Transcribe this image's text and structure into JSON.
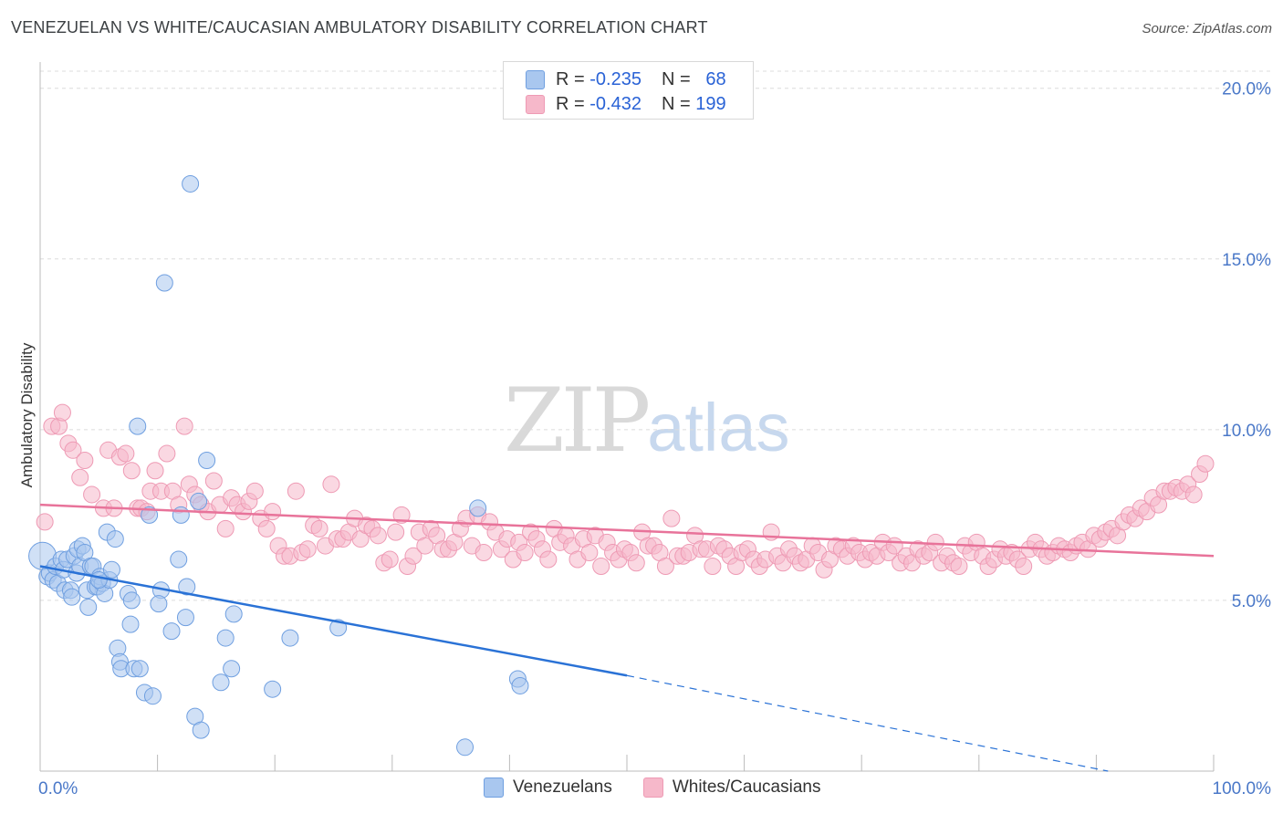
{
  "header": {
    "title": "VENEZUELAN VS WHITE/CAUCASIAN AMBULATORY DISABILITY CORRELATION CHART",
    "source": "Source: ZipAtlas.com"
  },
  "watermark": {
    "zip": "ZIP",
    "atlas": "atlas"
  },
  "legend": {
    "rows": [
      {
        "r_label": "R =",
        "r_value": "-0.235",
        "n_label": "N =",
        "n_value": "68",
        "color": "#a9c7ef"
      },
      {
        "r_label": "R =",
        "r_value": "-0.432",
        "n_label": "N =",
        "n_value": "199",
        "color": "#f6b8ca"
      }
    ]
  },
  "bottom_legend": [
    {
      "label": "Venezuelans",
      "color": "#a9c7ef"
    },
    {
      "label": "Whites/Caucasians",
      "color": "#f6b8ca"
    }
  ],
  "chart_data": {
    "type": "scatter",
    "title": "VENEZUELAN VS WHITE/CAUCASIAN AMBULATORY DISABILITY CORRELATION CHART",
    "xlabel": "",
    "ylabel": "Ambulatory Disability",
    "xlim": [
      0,
      100
    ],
    "ylim": [
      0,
      20.5
    ],
    "x_tick_labels": [
      "0.0%",
      "100.0%"
    ],
    "y_ticks": [
      5,
      10,
      15,
      20
    ],
    "y_tick_labels": [
      "5.0%",
      "10.0%",
      "15.0%",
      "20.0%"
    ],
    "grid": true,
    "legend_position": "top-center",
    "series": [
      {
        "name": "Venezuelans",
        "color": "#6f9fe0",
        "fill": "#a9c7ef",
        "trend": {
          "x0": 0,
          "y0": 6.0,
          "x1": 50,
          "y1": 2.8,
          "dashed_to_x": 91,
          "dashed_to_y": 0.0
        },
        "points": [
          [
            0.2,
            6.3
          ],
          [
            0.6,
            5.7
          ],
          [
            0.8,
            5.8
          ],
          [
            1.1,
            5.6
          ],
          [
            1.5,
            5.5
          ],
          [
            1.3,
            6.0
          ],
          [
            1.8,
            6.2
          ],
          [
            2.0,
            5.9
          ],
          [
            2.3,
            6.2
          ],
          [
            2.1,
            5.3
          ],
          [
            2.6,
            5.3
          ],
          [
            2.7,
            5.1
          ],
          [
            2.9,
            6.3
          ],
          [
            3.1,
            5.8
          ],
          [
            3.2,
            6.5
          ],
          [
            3.4,
            6.0
          ],
          [
            3.6,
            6.6
          ],
          [
            3.8,
            6.4
          ],
          [
            4.0,
            5.3
          ],
          [
            4.1,
            4.8
          ],
          [
            4.3,
            6.0
          ],
          [
            4.5,
            6.0
          ],
          [
            4.7,
            5.4
          ],
          [
            4.9,
            5.4
          ],
          [
            5.1,
            5.7
          ],
          [
            5.3,
            5.5
          ],
          [
            5.5,
            5.2
          ],
          [
            5.7,
            7.0
          ],
          [
            5.9,
            5.6
          ],
          [
            6.1,
            5.9
          ],
          [
            6.4,
            6.8
          ],
          [
            6.6,
            3.6
          ],
          [
            6.8,
            3.2
          ],
          [
            6.9,
            3.0
          ],
          [
            7.5,
            5.2
          ],
          [
            7.7,
            4.3
          ],
          [
            7.8,
            5.0
          ],
          [
            8.0,
            3.0
          ],
          [
            8.5,
            3.0
          ],
          [
            8.3,
            10.1
          ],
          [
            8.9,
            2.3
          ],
          [
            9.3,
            7.5
          ],
          [
            9.6,
            2.2
          ],
          [
            10.3,
            5.3
          ],
          [
            10.1,
            4.9
          ],
          [
            10.6,
            14.3
          ],
          [
            11.2,
            4.1
          ],
          [
            11.8,
            6.2
          ],
          [
            12.0,
            7.5
          ],
          [
            12.4,
            4.5
          ],
          [
            12.5,
            5.4
          ],
          [
            12.8,
            17.2
          ],
          [
            13.2,
            1.6
          ],
          [
            13.5,
            7.9
          ],
          [
            13.7,
            1.2
          ],
          [
            14.2,
            9.1
          ],
          [
            15.4,
            2.6
          ],
          [
            15.8,
            3.9
          ],
          [
            16.3,
            3.0
          ],
          [
            16.5,
            4.6
          ],
          [
            19.8,
            2.4
          ],
          [
            21.3,
            3.9
          ],
          [
            25.4,
            4.2
          ],
          [
            36.2,
            0.7
          ],
          [
            37.3,
            7.7
          ],
          [
            40.7,
            2.7
          ],
          [
            40.9,
            2.5
          ],
          [
            5.0,
            5.6
          ]
        ]
      },
      {
        "name": "Whites/Caucasians",
        "color": "#ee9ab4",
        "fill": "#f6b8ca",
        "trend": {
          "x0": 0,
          "y0": 7.8,
          "x1": 100,
          "y1": 6.3
        },
        "points": [
          [
            0.4,
            7.3
          ],
          [
            1.0,
            10.1
          ],
          [
            1.6,
            10.1
          ],
          [
            1.9,
            10.5
          ],
          [
            2.4,
            9.6
          ],
          [
            2.8,
            9.4
          ],
          [
            3.4,
            8.6
          ],
          [
            3.8,
            9.1
          ],
          [
            4.4,
            8.1
          ],
          [
            5.4,
            7.7
          ],
          [
            5.8,
            9.4
          ],
          [
            6.3,
            7.7
          ],
          [
            6.8,
            9.2
          ],
          [
            7.3,
            9.3
          ],
          [
            7.8,
            8.8
          ],
          [
            8.3,
            7.7
          ],
          [
            8.6,
            7.7
          ],
          [
            9.1,
            7.6
          ],
          [
            9.4,
            8.2
          ],
          [
            9.8,
            8.8
          ],
          [
            10.3,
            8.2
          ],
          [
            10.8,
            9.3
          ],
          [
            11.3,
            8.2
          ],
          [
            11.8,
            7.8
          ],
          [
            12.3,
            10.1
          ],
          [
            12.7,
            8.4
          ],
          [
            13.2,
            8.1
          ],
          [
            13.7,
            7.8
          ],
          [
            14.3,
            7.6
          ],
          [
            14.8,
            8.5
          ],
          [
            15.3,
            7.8
          ],
          [
            15.8,
            7.1
          ],
          [
            16.3,
            8.0
          ],
          [
            16.8,
            7.8
          ],
          [
            17.3,
            7.6
          ],
          [
            17.8,
            7.9
          ],
          [
            18.3,
            8.2
          ],
          [
            18.8,
            7.4
          ],
          [
            19.3,
            7.1
          ],
          [
            19.8,
            7.6
          ],
          [
            20.3,
            6.6
          ],
          [
            20.8,
            6.3
          ],
          [
            21.3,
            6.3
          ],
          [
            21.8,
            8.2
          ],
          [
            22.3,
            6.4
          ],
          [
            22.8,
            6.5
          ],
          [
            23.3,
            7.2
          ],
          [
            23.8,
            7.1
          ],
          [
            24.3,
            6.6
          ],
          [
            24.8,
            8.4
          ],
          [
            25.3,
            6.8
          ],
          [
            25.8,
            6.8
          ],
          [
            26.3,
            7.0
          ],
          [
            26.8,
            7.4
          ],
          [
            27.3,
            6.8
          ],
          [
            27.8,
            7.2
          ],
          [
            28.3,
            7.1
          ],
          [
            28.8,
            6.9
          ],
          [
            29.3,
            6.1
          ],
          [
            29.8,
            6.2
          ],
          [
            30.3,
            7.0
          ],
          [
            30.8,
            7.5
          ],
          [
            31.3,
            6.0
          ],
          [
            31.8,
            6.3
          ],
          [
            32.3,
            7.0
          ],
          [
            32.8,
            6.6
          ],
          [
            33.3,
            7.1
          ],
          [
            33.8,
            6.9
          ],
          [
            34.3,
            6.5
          ],
          [
            34.8,
            6.5
          ],
          [
            35.3,
            6.7
          ],
          [
            35.8,
            7.1
          ],
          [
            36.3,
            7.4
          ],
          [
            36.8,
            6.6
          ],
          [
            37.3,
            7.5
          ],
          [
            37.8,
            6.4
          ],
          [
            38.3,
            7.3
          ],
          [
            38.8,
            7.0
          ],
          [
            39.3,
            6.5
          ],
          [
            39.8,
            6.8
          ],
          [
            40.3,
            6.2
          ],
          [
            40.8,
            6.7
          ],
          [
            41.3,
            6.4
          ],
          [
            41.8,
            7.0
          ],
          [
            42.3,
            6.8
          ],
          [
            42.8,
            6.5
          ],
          [
            43.3,
            6.2
          ],
          [
            43.8,
            7.1
          ],
          [
            44.3,
            6.7
          ],
          [
            44.8,
            6.9
          ],
          [
            45.3,
            6.6
          ],
          [
            45.8,
            6.2
          ],
          [
            46.3,
            6.8
          ],
          [
            46.8,
            6.4
          ],
          [
            47.3,
            6.9
          ],
          [
            47.8,
            6.0
          ],
          [
            48.3,
            6.7
          ],
          [
            48.8,
            6.4
          ],
          [
            49.3,
            6.2
          ],
          [
            49.8,
            6.5
          ],
          [
            50.3,
            6.4
          ],
          [
            50.8,
            6.1
          ],
          [
            51.3,
            7.0
          ],
          [
            51.8,
            6.6
          ],
          [
            52.3,
            6.6
          ],
          [
            52.8,
            6.4
          ],
          [
            53.3,
            6.0
          ],
          [
            53.8,
            7.4
          ],
          [
            54.3,
            6.3
          ],
          [
            54.8,
            6.3
          ],
          [
            55.3,
            6.4
          ],
          [
            55.8,
            6.9
          ],
          [
            56.3,
            6.5
          ],
          [
            56.8,
            6.5
          ],
          [
            57.3,
            6.0
          ],
          [
            57.8,
            6.6
          ],
          [
            58.3,
            6.5
          ],
          [
            58.8,
            6.3
          ],
          [
            59.3,
            6.0
          ],
          [
            59.8,
            6.4
          ],
          [
            60.3,
            6.5
          ],
          [
            60.8,
            6.2
          ],
          [
            61.3,
            6.0
          ],
          [
            61.8,
            6.2
          ],
          [
            62.3,
            7.0
          ],
          [
            62.8,
            6.3
          ],
          [
            63.3,
            6.1
          ],
          [
            63.8,
            6.5
          ],
          [
            64.3,
            6.3
          ],
          [
            64.8,
            6.1
          ],
          [
            65.3,
            6.2
          ],
          [
            65.8,
            6.6
          ],
          [
            66.3,
            6.4
          ],
          [
            66.8,
            5.9
          ],
          [
            67.3,
            6.2
          ],
          [
            67.8,
            6.6
          ],
          [
            68.3,
            6.5
          ],
          [
            68.8,
            6.3
          ],
          [
            69.3,
            6.6
          ],
          [
            69.8,
            6.4
          ],
          [
            70.3,
            6.2
          ],
          [
            70.8,
            6.4
          ],
          [
            71.3,
            6.3
          ],
          [
            71.8,
            6.7
          ],
          [
            72.3,
            6.4
          ],
          [
            72.8,
            6.6
          ],
          [
            73.3,
            6.1
          ],
          [
            73.8,
            6.3
          ],
          [
            74.3,
            6.1
          ],
          [
            74.8,
            6.5
          ],
          [
            75.3,
            6.3
          ],
          [
            75.8,
            6.4
          ],
          [
            76.3,
            6.7
          ],
          [
            76.8,
            6.1
          ],
          [
            77.3,
            6.3
          ],
          [
            77.8,
            6.1
          ],
          [
            78.3,
            6.0
          ],
          [
            78.8,
            6.6
          ],
          [
            79.3,
            6.4
          ],
          [
            79.8,
            6.7
          ],
          [
            80.3,
            6.3
          ],
          [
            80.8,
            6.0
          ],
          [
            81.3,
            6.2
          ],
          [
            81.8,
            6.5
          ],
          [
            82.3,
            6.3
          ],
          [
            82.8,
            6.4
          ],
          [
            83.3,
            6.2
          ],
          [
            83.8,
            6.0
          ],
          [
            84.3,
            6.5
          ],
          [
            84.8,
            6.7
          ],
          [
            85.3,
            6.5
          ],
          [
            85.8,
            6.3
          ],
          [
            86.3,
            6.4
          ],
          [
            86.8,
            6.6
          ],
          [
            87.3,
            6.5
          ],
          [
            87.8,
            6.4
          ],
          [
            88.3,
            6.6
          ],
          [
            88.8,
            6.7
          ],
          [
            89.3,
            6.5
          ],
          [
            89.8,
            6.9
          ],
          [
            90.3,
            6.8
          ],
          [
            90.8,
            7.0
          ],
          [
            91.3,
            7.1
          ],
          [
            91.8,
            6.9
          ],
          [
            92.3,
            7.3
          ],
          [
            92.8,
            7.5
          ],
          [
            93.3,
            7.4
          ],
          [
            93.8,
            7.7
          ],
          [
            94.3,
            7.6
          ],
          [
            94.8,
            8.0
          ],
          [
            95.3,
            7.8
          ],
          [
            95.8,
            8.2
          ],
          [
            96.3,
            8.2
          ],
          [
            96.8,
            8.3
          ],
          [
            97.3,
            8.2
          ],
          [
            97.8,
            8.4
          ],
          [
            98.3,
            8.1
          ],
          [
            98.8,
            8.7
          ],
          [
            99.3,
            9.0
          ]
        ]
      }
    ]
  }
}
